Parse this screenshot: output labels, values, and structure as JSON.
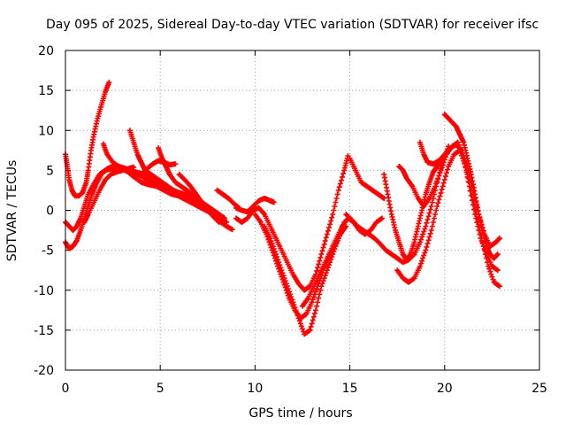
{
  "chart_data": {
    "type": "scatter",
    "title": "Day 095 of 2025, Sidereal Day-to-day VTEC variation (SDTVAR) for receiver ifsc",
    "xlabel": "GPS time / hours",
    "ylabel": "SDTVAR / TECUs",
    "xlim": [
      0,
      25
    ],
    "ylim": [
      -20,
      20
    ],
    "xticks": [
      "0",
      "5",
      "10",
      "15",
      "20",
      "25"
    ],
    "yticks": [
      "-20",
      "-15",
      "-10",
      "-5",
      "0",
      "5",
      "10",
      "15",
      "20"
    ],
    "grid": true,
    "marker": "+",
    "color": "#ff0000",
    "series": [
      {
        "x": [
          0.0,
          0.1,
          0.2,
          0.35,
          0.5,
          0.7,
          0.9,
          1.1,
          1.2,
          1.35,
          1.5,
          1.7,
          1.9,
          2.1,
          2.3
        ],
        "y": [
          7.0,
          5.5,
          3.8,
          2.5,
          1.8,
          1.8,
          2.2,
          3.5,
          5.0,
          7.5,
          9.5,
          11.5,
          13.2,
          14.8,
          16.0
        ]
      },
      {
        "x": [
          0.0,
          0.2,
          0.4,
          0.6,
          0.8,
          1.0,
          1.2,
          1.5,
          1.8,
          2.1,
          2.4,
          2.7,
          3.0,
          3.3,
          3.6,
          4.0,
          4.4,
          4.8,
          5.2,
          5.6,
          6.0,
          6.4,
          6.8,
          7.2,
          7.6,
          8.0,
          8.3
        ],
        "y": [
          -1.5,
          -2.0,
          -2.5,
          -2.0,
          -1.0,
          0.5,
          2.0,
          3.3,
          4.5,
          5.0,
          5.2,
          5.3,
          5.2,
          4.8,
          4.2,
          3.5,
          3.2,
          3.0,
          2.5,
          2.0,
          1.8,
          1.5,
          1.0,
          0.5,
          0.0,
          -0.5,
          -1.0
        ]
      },
      {
        "x": [
          0.0,
          0.2,
          0.4,
          0.6,
          0.8,
          1.0,
          1.2,
          1.4,
          1.6,
          1.9,
          2.2,
          2.5,
          2.8,
          3.1,
          3.4,
          3.8,
          4.2,
          4.6,
          5.0,
          5.4,
          5.8,
          6.2,
          6.6,
          7.0,
          7.4,
          7.8,
          8.1
        ],
        "y": [
          -4.0,
          -4.8,
          -4.5,
          -3.8,
          -2.5,
          -1.0,
          0.5,
          2.0,
          3.2,
          4.5,
          5.2,
          5.5,
          5.5,
          5.3,
          5.0,
          4.5,
          4.0,
          3.5,
          3.0,
          2.5,
          2.0,
          1.5,
          1.0,
          0.5,
          0.0,
          -0.5,
          -0.8
        ]
      },
      {
        "x": [
          1.0,
          1.2,
          1.5,
          1.8,
          2.1,
          2.4,
          2.7,
          3.0,
          3.3,
          3.6
        ],
        "y": [
          -1.5,
          -0.5,
          1.0,
          2.5,
          3.8,
          4.5,
          4.8,
          5.0,
          5.2,
          5.4
        ]
      },
      {
        "x": [
          2.0,
          2.2,
          2.5,
          2.8,
          3.1,
          3.4,
          3.7,
          4.0,
          4.3,
          4.6,
          4.9,
          5.2,
          5.5,
          5.8,
          6.1,
          6.4,
          6.7,
          7.0,
          7.3,
          7.6,
          7.9,
          8.2,
          8.5
        ],
        "y": [
          8.3,
          7.0,
          6.0,
          5.5,
          5.2,
          5.0,
          4.8,
          4.6,
          4.5,
          4.0,
          3.5,
          3.0,
          2.5,
          2.0,
          1.8,
          1.5,
          1.2,
          1.0,
          0.5,
          0.0,
          -0.5,
          -1.0,
          -1.5
        ]
      },
      {
        "x": [
          3.4,
          3.6,
          3.8,
          4.0,
          4.2,
          4.5,
          4.8,
          5.1,
          5.4,
          5.7,
          6.0,
          6.3,
          6.6,
          6.9,
          7.2,
          7.5,
          7.8,
          8.1,
          8.4
        ],
        "y": [
          10.0,
          8.5,
          7.0,
          6.0,
          5.0,
          4.5,
          4.0,
          3.5,
          3.0,
          2.5,
          2.2,
          2.0,
          1.8,
          1.5,
          1.0,
          0.5,
          0.0,
          -0.5,
          -1.0
        ]
      },
      {
        "x": [
          4.0,
          4.3,
          4.6,
          4.9,
          5.2,
          5.5,
          5.8
        ],
        "y": [
          4.5,
          5.2,
          5.8,
          6.2,
          6.0,
          5.7,
          5.8
        ]
      },
      {
        "x": [
          4.9,
          5.1,
          5.3,
          5.5,
          5.8,
          6.1,
          6.4,
          6.7,
          7.0,
          7.3,
          7.6,
          7.9,
          8.2,
          8.5,
          8.8
        ],
        "y": [
          7.8,
          6.5,
          5.5,
          4.5,
          3.5,
          3.0,
          2.5,
          2.0,
          1.5,
          0.8,
          0.0,
          -0.8,
          -1.5,
          -2.0,
          -2.4
        ]
      },
      {
        "x": [
          6.0,
          6.3,
          6.6,
          6.9,
          7.2,
          7.5,
          7.8,
          8.1
        ],
        "y": [
          4.5,
          3.8,
          3.0,
          2.0,
          1.0,
          0.0,
          -0.8,
          -1.5
        ]
      },
      {
        "x": [
          8.0,
          8.3,
          8.6,
          8.9,
          9.2
        ],
        "y": [
          2.5,
          2.0,
          1.5,
          0.8,
          0.2
        ]
      },
      {
        "x": [
          9.0,
          9.3,
          9.6,
          9.9,
          10.2,
          10.5,
          10.8,
          11.0
        ],
        "y": [
          0.3,
          0.0,
          -0.2,
          0.5,
          1.2,
          1.5,
          1.2,
          1.0
        ]
      },
      {
        "x": [
          9.0,
          9.3,
          9.6,
          9.9,
          10.2,
          10.5,
          10.8,
          11.1,
          11.4,
          11.7,
          12.0,
          12.3,
          12.6,
          12.9,
          13.2,
          13.5,
          13.8,
          14.1,
          14.4,
          14.7,
          14.9
        ],
        "y": [
          -1.0,
          -1.5,
          -1.0,
          0.0,
          0.3,
          -0.5,
          -2.0,
          -3.5,
          -5.0,
          -6.5,
          -8.0,
          -9.2,
          -10.0,
          -9.5,
          -8.0,
          -5.5,
          -3.0,
          -0.5,
          2.5,
          5.0,
          6.8
        ]
      },
      {
        "x": [
          10.0,
          10.3,
          10.6,
          10.9,
          11.2,
          11.5,
          11.8,
          12.1,
          12.4,
          12.7,
          13.0,
          13.3,
          13.6,
          13.9,
          14.2,
          14.5,
          14.8
        ],
        "y": [
          -0.5,
          -1.5,
          -3.0,
          -5.0,
          -7.0,
          -9.0,
          -11.0,
          -12.5,
          -13.5,
          -13.0,
          -11.5,
          -9.5,
          -7.5,
          -6.0,
          -4.5,
          -3.0,
          -2.0
        ]
      },
      {
        "x": [
          10.5,
          10.8,
          11.1,
          11.4,
          11.7,
          12.0,
          12.3,
          12.6,
          12.9,
          13.2,
          13.5,
          13.8,
          14.1,
          14.4,
          14.7
        ],
        "y": [
          -2.0,
          -3.5,
          -5.5,
          -7.5,
          -9.5,
          -11.5,
          -13.5,
          -15.5,
          -15.0,
          -12.5,
          -9.5,
          -7.5,
          -5.5,
          -3.5,
          -1.5
        ]
      },
      {
        "x": [
          12.5,
          12.8,
          13.1,
          13.4,
          13.7,
          14.0,
          14.3,
          14.6,
          14.9,
          15.2,
          15.5,
          15.8,
          16.1,
          16.4,
          16.7
        ],
        "y": [
          -12.0,
          -11.0,
          -9.5,
          -8.0,
          -6.5,
          -5.0,
          -3.5,
          -2.0,
          -1.0,
          -1.5,
          -2.5,
          -3.0,
          -2.5,
          -1.5,
          -1.0
        ]
      },
      {
        "x": [
          15.0,
          15.3,
          15.6,
          15.9,
          16.2,
          16.5,
          16.8
        ],
        "y": [
          6.5,
          5.0,
          3.5,
          3.0,
          2.5,
          2.0,
          1.5
        ]
      },
      {
        "x": [
          14.8,
          15.1,
          15.4,
          15.7,
          16.0,
          16.3,
          16.6,
          16.9,
          17.2,
          17.5,
          17.8,
          18.1,
          18.4,
          18.7,
          19.0,
          19.3,
          19.6,
          19.9,
          20.2
        ],
        "y": [
          -0.5,
          -1.2,
          -2.0,
          -2.5,
          -3.0,
          -3.5,
          -4.2,
          -5.0,
          -5.5,
          -6.0,
          -6.5,
          -6.2,
          -5.5,
          -4.0,
          -2.0,
          0.5,
          3.5,
          6.0,
          8.0
        ]
      },
      {
        "x": [
          16.8,
          17.0,
          17.2,
          17.4,
          17.6,
          17.8,
          18.0,
          18.2,
          18.4,
          18.6,
          18.8,
          19.0,
          19.2,
          19.4,
          19.6,
          19.9,
          20.2
        ],
        "y": [
          4.5,
          2.0,
          -0.5,
          -2.5,
          -4.0,
          -5.5,
          -6.2,
          -5.5,
          -4.0,
          -2.0,
          0.0,
          2.0,
          3.5,
          4.8,
          5.5,
          6.5,
          7.5
        ]
      },
      {
        "x": [
          17.6,
          17.8,
          18.0,
          18.3,
          18.6,
          18.9,
          19.2,
          19.5,
          19.8,
          20.1,
          20.4,
          20.7,
          21.0,
          21.3,
          21.6,
          21.9,
          22.2,
          22.5,
          22.8
        ],
        "y": [
          5.5,
          5.0,
          4.0,
          3.0,
          1.5,
          0.5,
          1.5,
          3.0,
          5.0,
          7.0,
          8.0,
          8.5,
          6.5,
          3.0,
          -0.5,
          -3.5,
          -5.5,
          -7.0,
          -7.5
        ]
      },
      {
        "x": [
          17.5,
          17.8,
          18.1,
          18.4,
          18.7,
          19.0,
          19.3,
          19.6,
          19.9,
          20.2,
          20.5,
          20.8,
          21.1,
          21.4,
          21.7,
          22.0,
          22.3,
          22.6,
          22.9
        ],
        "y": [
          -7.5,
          -8.5,
          -9.0,
          -8.5,
          -7.0,
          -5.0,
          -2.5,
          0.5,
          3.0,
          5.5,
          7.0,
          7.5,
          5.5,
          2.5,
          -1.0,
          -4.0,
          -7.0,
          -9.0,
          -9.5
        ]
      },
      {
        "x": [
          18.7,
          18.9,
          19.1,
          19.4,
          19.7,
          20.0,
          20.3,
          20.6,
          20.9,
          21.2,
          21.5,
          21.8,
          22.1,
          22.4,
          22.7,
          22.9
        ],
        "y": [
          8.5,
          7.0,
          6.0,
          5.8,
          6.2,
          7.0,
          7.8,
          8.2,
          7.5,
          5.5,
          2.5,
          -0.5,
          -3.0,
          -4.5,
          -4.0,
          -3.5
        ]
      },
      {
        "x": [
          20.0,
          20.2,
          20.4,
          20.6,
          20.8,
          21.0,
          21.2,
          21.4,
          21.6,
          21.8,
          22.0,
          22.2,
          22.4,
          22.6,
          22.8
        ],
        "y": [
          12.0,
          11.5,
          11.0,
          10.5,
          9.5,
          8.5,
          6.5,
          4.5,
          2.0,
          -0.5,
          -2.5,
          -4.5,
          -5.5,
          -6.0,
          -5.5
        ]
      }
    ]
  }
}
